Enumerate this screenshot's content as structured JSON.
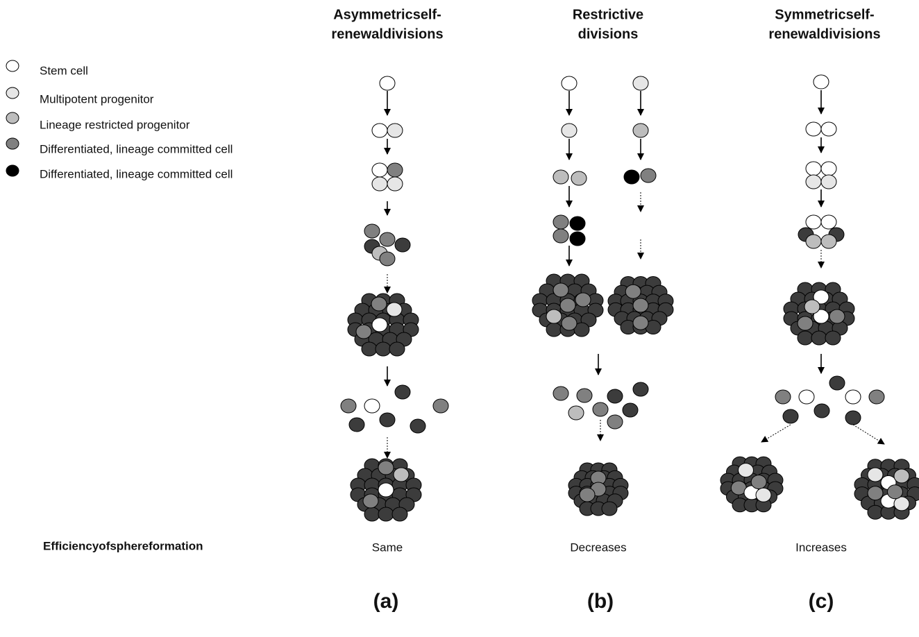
{
  "legend": [
    "Stem cell",
    "Multipotent progenitor",
    "Lineage restricted progenitor",
    "Differentiated, lineage committed cell",
    "Differentiated, lineage committed cell"
  ],
  "columns": [
    {
      "title": [
        "Asymmetricself-",
        "renewaldivisions"
      ],
      "outcome": "Same",
      "label": "(a)"
    },
    {
      "title": [
        "Restrictive",
        "divisions"
      ],
      "outcome": "Decreases",
      "label": "(b)"
    },
    {
      "title": [
        "Symmetricself-",
        "renewaldivisions"
      ],
      "outcome": "Increases",
      "label": "(c)"
    }
  ],
  "row_label": "Efficiencyofsphereformation"
}
